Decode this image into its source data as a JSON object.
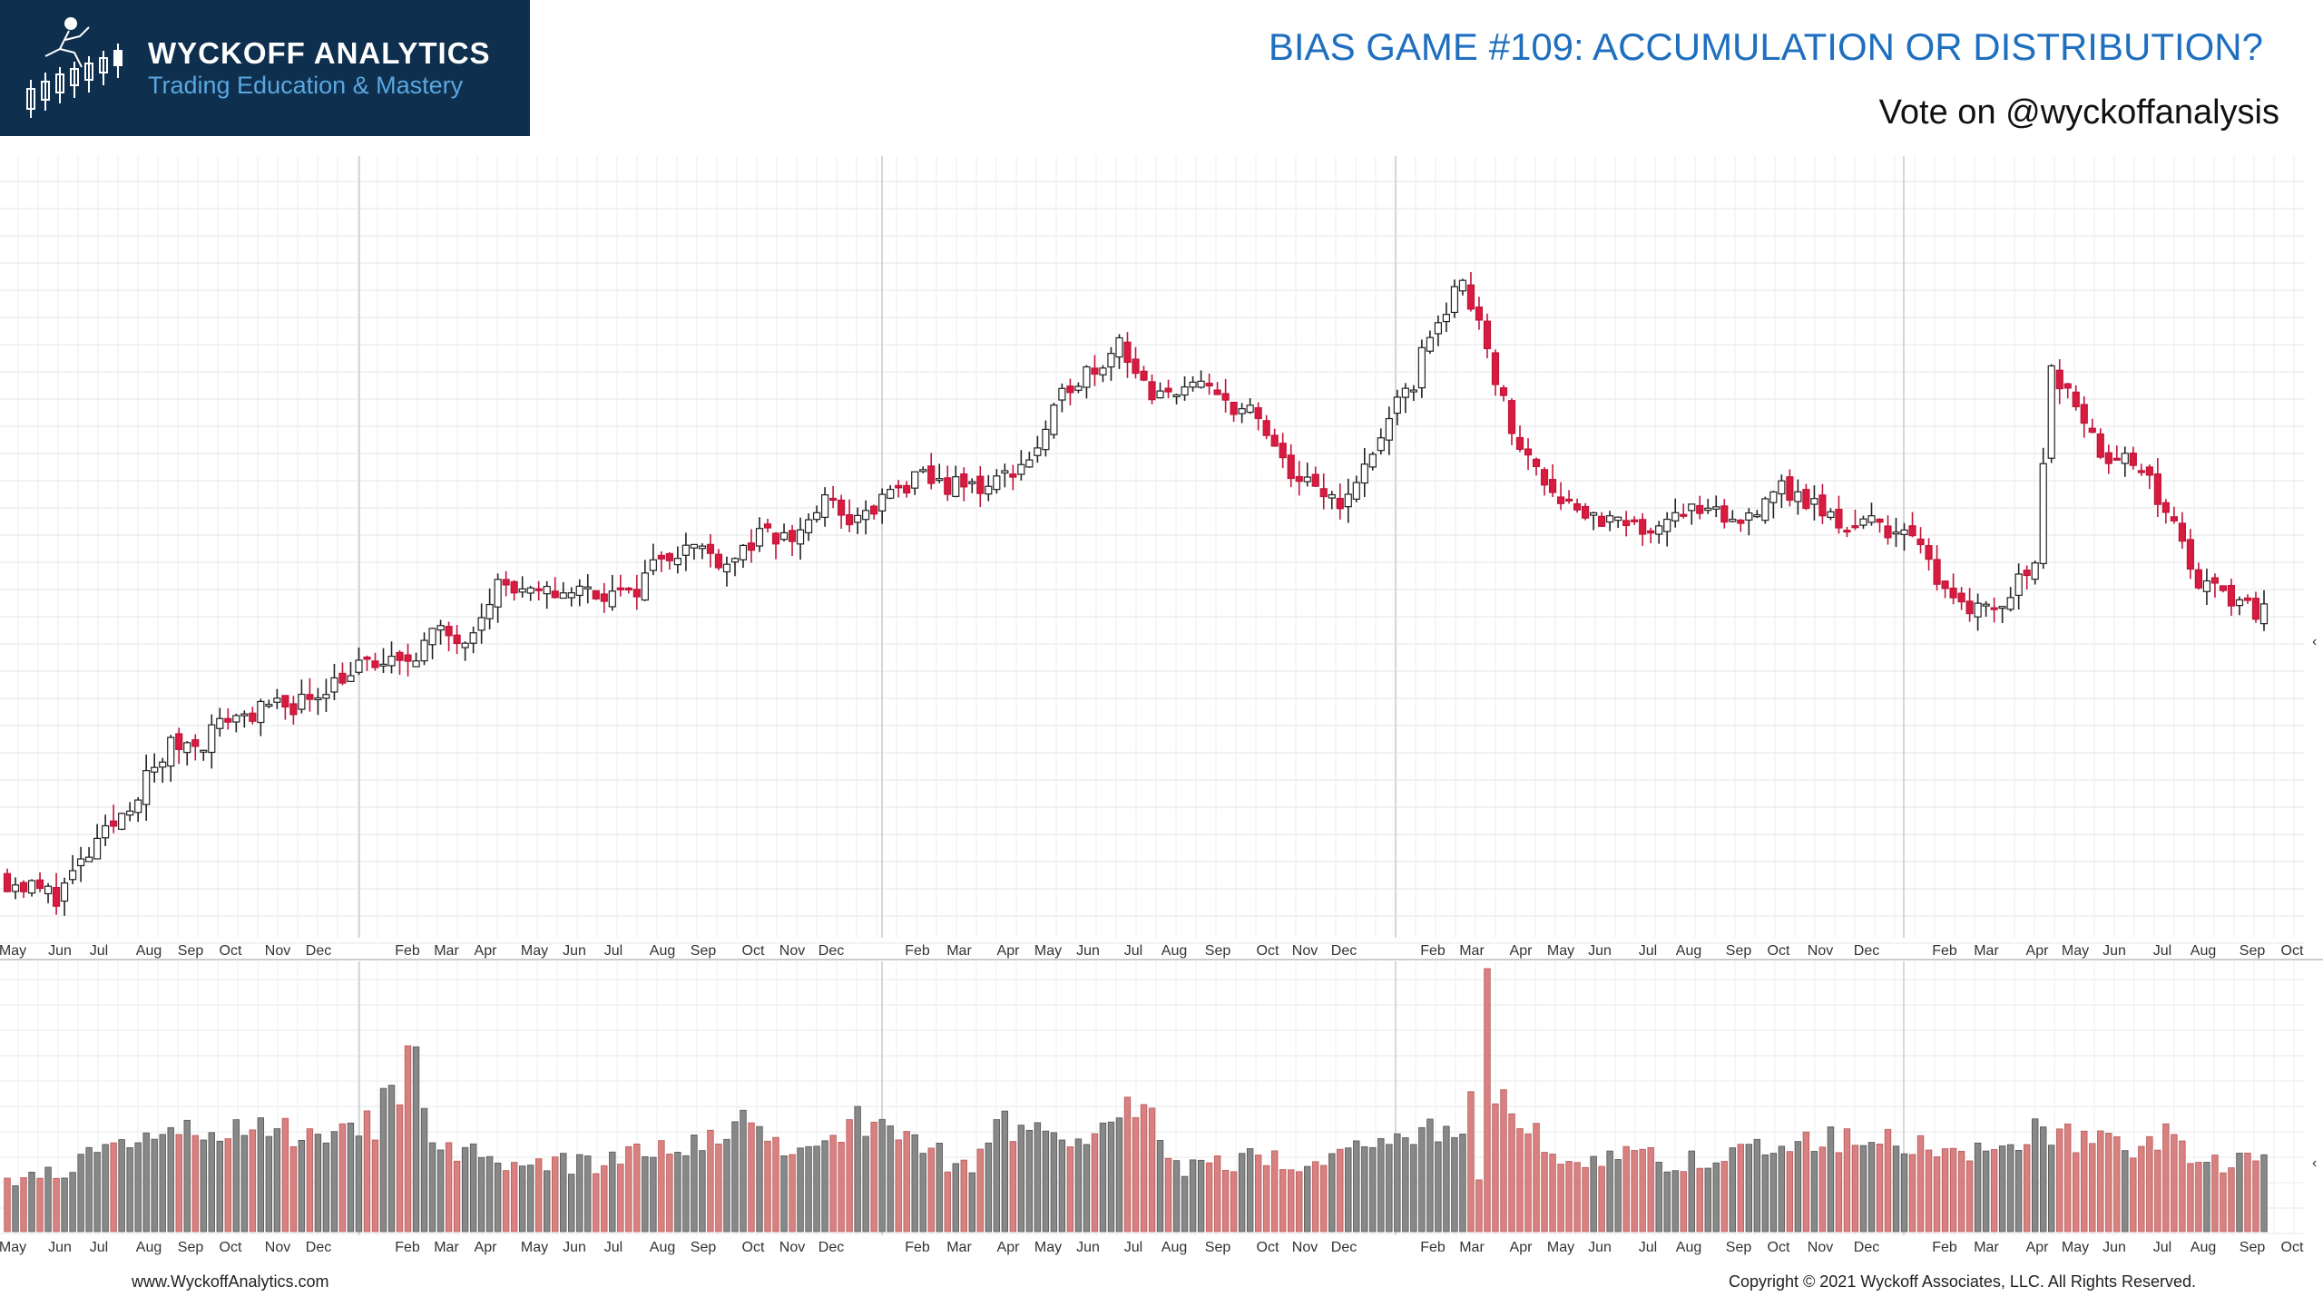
{
  "header": {
    "brand_name": "WYCKOFF ANALYTICS",
    "brand_tagline": "Trading Education & Mastery",
    "title": "BIAS GAME #109: ACCUMULATION OR DISTRIBUTION?",
    "subtitle": "Vote on @wyckoffanalysis"
  },
  "footer": {
    "website": "www.WyckoffAnalytics.com",
    "copyright": "Copyright © 2021 Wyckoff Associates, LLC. All Rights Reserved."
  },
  "colors": {
    "up_candle": "#ffffff",
    "down_candle": "#d81b3f",
    "up_volume": "#888888",
    "down_volume": "#d98080",
    "brand": "#0e2f4e",
    "title": "#1f6fbf"
  },
  "chart_data": [
    {
      "type": "candlestick",
      "panel": "price",
      "grid": true,
      "title": "",
      "xlabel": "",
      "ylabel": "",
      "ylim": [
        0,
        100
      ],
      "x_tick_labels": [
        "May",
        "Jun",
        "Jul",
        "Aug",
        "Sep",
        "Oct",
        "Nov",
        "Dec",
        "Feb",
        "Mar",
        "Apr",
        "May",
        "Jun",
        "Jul",
        "Aug",
        "Sep",
        "Oct",
        "Nov",
        "Dec",
        "Feb",
        "Mar",
        "Apr",
        "May",
        "Jun",
        "Jul",
        "Aug",
        "Sep",
        "Oct",
        "Nov",
        "Dec",
        "Feb",
        "Mar",
        "Apr",
        "May",
        "Jun",
        "Jul",
        "Aug",
        "Sep",
        "Oct",
        "Nov",
        "Dec",
        "Feb",
        "Mar",
        "Apr",
        "May",
        "Jun",
        "Jul",
        "Aug",
        "Sep",
        "Oct"
      ],
      "anchor_closes": [
        [
          0,
          6
        ],
        [
          6,
          4
        ],
        [
          9,
          8
        ],
        [
          12,
          12
        ],
        [
          16,
          18
        ],
        [
          20,
          24
        ],
        [
          24,
          25
        ],
        [
          27,
          28
        ],
        [
          32,
          29
        ],
        [
          36,
          30
        ],
        [
          40,
          33
        ],
        [
          44,
          35
        ],
        [
          48,
          35
        ],
        [
          52,
          39
        ],
        [
          56,
          39
        ],
        [
          60,
          46
        ],
        [
          64,
          44
        ],
        [
          68,
          45
        ],
        [
          72,
          45
        ],
        [
          76,
          44
        ],
        [
          80,
          50
        ],
        [
          84,
          51
        ],
        [
          88,
          49
        ],
        [
          92,
          52
        ],
        [
          96,
          52
        ],
        [
          100,
          57
        ],
        [
          104,
          54
        ],
        [
          108,
          58
        ],
        [
          112,
          60
        ],
        [
          116,
          59
        ],
        [
          120,
          59
        ],
        [
          124,
          62
        ],
        [
          126,
          64
        ],
        [
          130,
          73
        ],
        [
          134,
          76
        ],
        [
          136,
          79
        ],
        [
          140,
          70
        ],
        [
          144,
          73
        ],
        [
          148,
          71
        ],
        [
          152,
          69
        ],
        [
          156,
          62
        ],
        [
          160,
          58
        ],
        [
          164,
          57
        ],
        [
          168,
          66
        ],
        [
          172,
          73
        ],
        [
          174,
          80
        ],
        [
          178,
          86
        ],
        [
          180,
          82
        ],
        [
          184,
          66
        ],
        [
          188,
          60
        ],
        [
          192,
          56
        ],
        [
          196,
          54
        ],
        [
          200,
          53
        ],
        [
          204,
          56
        ],
        [
          208,
          55
        ],
        [
          212,
          54
        ],
        [
          216,
          59
        ],
        [
          220,
          57
        ],
        [
          224,
          54
        ],
        [
          228,
          54
        ],
        [
          232,
          53
        ],
        [
          236,
          47
        ],
        [
          240,
          43
        ],
        [
          244,
          43
        ],
        [
          248,
          50
        ],
        [
          250,
          74
        ],
        [
          252,
          73
        ],
        [
          256,
          64
        ],
        [
          260,
          62
        ],
        [
          264,
          56
        ],
        [
          268,
          46
        ],
        [
          272,
          44
        ],
        [
          276,
          42
        ]
      ],
      "candle_count": 277
    },
    {
      "type": "bar",
      "panel": "volume",
      "title": "",
      "xlabel": "",
      "ylabel": "",
      "ylim": [
        0,
        100
      ],
      "anchor_values": [
        [
          0,
          18
        ],
        [
          20,
          37
        ],
        [
          40,
          40
        ],
        [
          45,
          41
        ],
        [
          50,
          70
        ],
        [
          52,
          35
        ],
        [
          60,
          25
        ],
        [
          70,
          26
        ],
        [
          80,
          30
        ],
        [
          86,
          33
        ],
        [
          90,
          40
        ],
        [
          93,
          37
        ],
        [
          96,
          30
        ],
        [
          100,
          39
        ],
        [
          104,
          42
        ],
        [
          112,
          34
        ],
        [
          116,
          25
        ],
        [
          119,
          27
        ],
        [
          122,
          41
        ],
        [
          124,
          37
        ],
        [
          130,
          36
        ],
        [
          135,
          37
        ],
        [
          139,
          58
        ],
        [
          142,
          26
        ],
        [
          144,
          24
        ],
        [
          152,
          28
        ],
        [
          160,
          26
        ],
        [
          168,
          32
        ],
        [
          176,
          42
        ],
        [
          179,
          46
        ],
        [
          180,
          22
        ],
        [
          181,
          100
        ],
        [
          182,
          44
        ],
        [
          184,
          48
        ],
        [
          190,
          26
        ],
        [
          196,
          30
        ],
        [
          208,
          26
        ],
        [
          212,
          37
        ],
        [
          216,
          29
        ],
        [
          220,
          33
        ],
        [
          226,
          36
        ],
        [
          232,
          35
        ],
        [
          240,
          28
        ],
        [
          248,
          37
        ],
        [
          254,
          34
        ],
        [
          256,
          33
        ],
        [
          260,
          30
        ],
        [
          264,
          36
        ],
        [
          268,
          27
        ],
        [
          272,
          27
        ],
        [
          276,
          25
        ]
      ]
    }
  ]
}
